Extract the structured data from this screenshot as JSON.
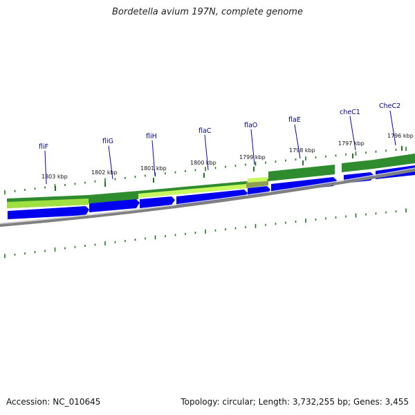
{
  "title": "Bordetella avium 197N, complete genome",
  "footer": {
    "accession": "Accession: NC_010645",
    "stats": "Topology: circular; Length: 3,732,255 bp; Genes: 3,455"
  },
  "colors": {
    "gene_arrow": "#0000ee",
    "gene_label": "#00008b",
    "tick": "#1f7a1f",
    "backbone": "#808080",
    "band_dark": "#2e8b2e",
    "band_light": "#b8f040"
  },
  "scale_labels": [
    "1803 kbp",
    "1802 kbp",
    "1801 kbp",
    "1800 kbp",
    "1799 kbp",
    "1798 kbp",
    "1797 kbp",
    "1796 kbp"
  ],
  "genes": [
    "fliF",
    "fliG",
    "fliH",
    "flaC",
    "flaO",
    "flaE",
    "cheC1",
    "CheC2"
  ]
}
